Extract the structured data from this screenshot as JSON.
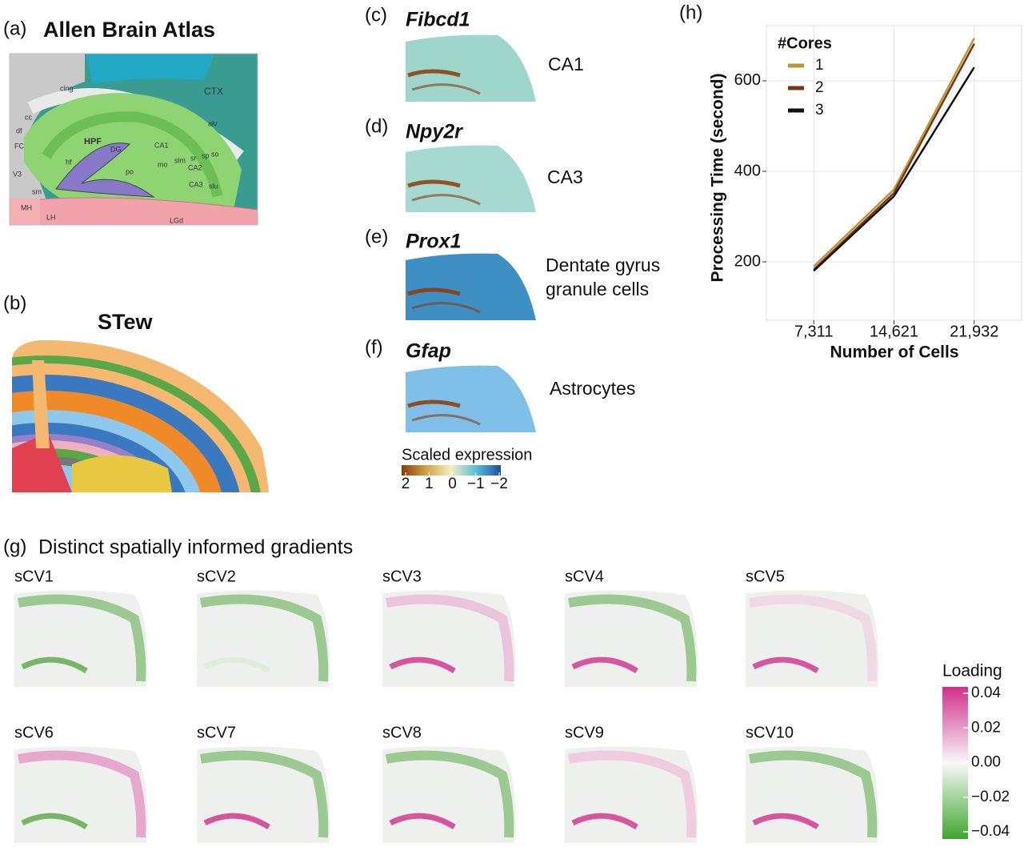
{
  "panels": {
    "a": {
      "label": "(a)",
      "title": "Allen Brain Atlas",
      "regions": [
        "CTX",
        "HPF",
        "DG",
        "CA1",
        "CA2",
        "CA3",
        "cing",
        "cc",
        "alv",
        "hf",
        "mo",
        "po",
        "slm",
        "sr",
        "sp",
        "so",
        "slu",
        "df",
        "FC",
        "V3",
        "sm",
        "MH",
        "LH",
        "LGd"
      ]
    },
    "b": {
      "label": "(b)",
      "title": "STew"
    },
    "c": {
      "label": "(c)",
      "gene": "Fibcd1",
      "annotation": [
        "CA1"
      ]
    },
    "d": {
      "label": "(d)",
      "gene": "Npy2r",
      "annotation": [
        "CA3"
      ]
    },
    "e": {
      "label": "(e)",
      "gene": "Prox1",
      "annotation": [
        "Dentate gyrus",
        "granule cells"
      ]
    },
    "f": {
      "label": "(f)",
      "gene": "Gfap",
      "annotation": [
        "Astrocytes"
      ]
    },
    "expression_legend": {
      "title": "Scaled expression",
      "ticks": [
        2,
        1,
        0,
        {
          "value": -1,
          "label": "−1"
        },
        {
          "value": -2,
          "label": "−2"
        }
      ]
    },
    "g": {
      "label": "(g)",
      "title": "Distinct spatially informed gradients",
      "maps": [
        "sCV1",
        "sCV2",
        "sCV3",
        "sCV4",
        "sCV5",
        "sCV6",
        "sCV7",
        "sCV8",
        "sCV9",
        "sCV10"
      ],
      "legend": {
        "title": "Loading",
        "ticks": [
          0.04,
          0.02,
          {
            "value": 0,
            "label": "0.00"
          },
          {
            "value": -0.02,
            "label": "−0.02"
          },
          {
            "value": -0.04,
            "label": "−0.04"
          }
        ]
      }
    },
    "h": {
      "label": "(h)"
    }
  },
  "chart_data": {
    "type": "line",
    "x_label": "Number of Cells",
    "y_label": "Processing Time (second)",
    "x": [
      7311,
      14621,
      21932
    ],
    "xlim": [
      2998,
      26250
    ],
    "xticks": [
      {
        "value": 7311,
        "label": "7,311"
      },
      {
        "value": 14621,
        "label": "14,621"
      },
      {
        "value": 21932,
        "label": "21,932"
      }
    ],
    "ylim": [
      71,
      722
    ],
    "yticks": [
      200,
      400,
      600
    ],
    "grid": true,
    "legend": "top-left",
    "legend_title": "#Cores",
    "series": [
      {
        "name": "1",
        "color": "#b8963a",
        "values": [
          190,
          360,
          694
        ]
      },
      {
        "name": "2",
        "color": "#7a3410",
        "values": [
          183,
          352,
          682
        ]
      },
      {
        "name": "3",
        "color": "#111111",
        "values": [
          180,
          345,
          630
        ]
      }
    ]
  }
}
